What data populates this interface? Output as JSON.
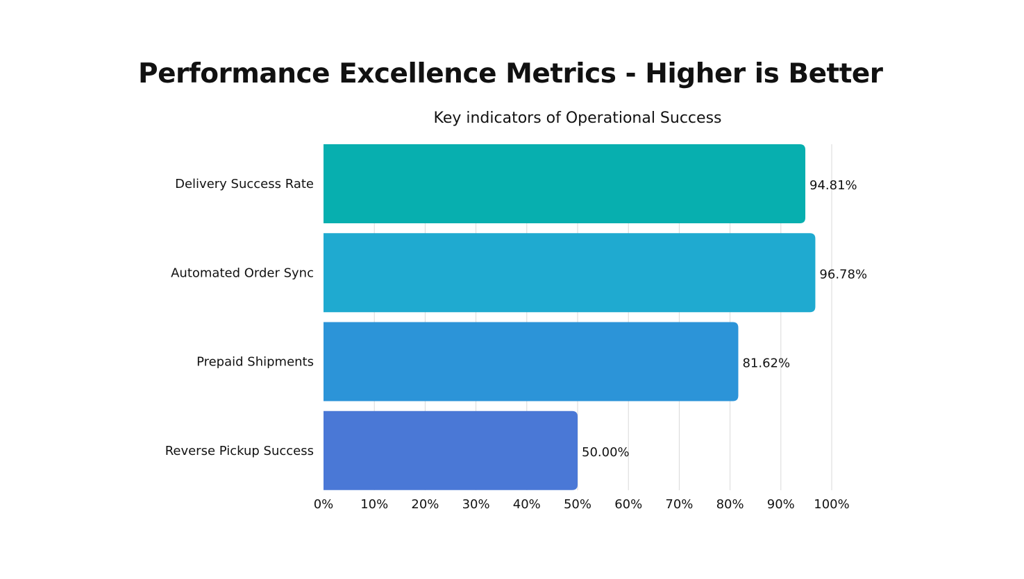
{
  "chart_data": {
    "type": "bar",
    "orientation": "horizontal",
    "title": "Performance Excellence Metrics - Higher is Better",
    "subtitle": "Key indicators of Operational Success",
    "categories": [
      "Delivery Success Rate",
      "Automated Order Sync",
      "Prepaid Shipments",
      "Reverse Pickup Success"
    ],
    "values": [
      94.81,
      96.78,
      81.62,
      50.0
    ],
    "data_labels": [
      "94.81%",
      "96.78%",
      "81.62%",
      "50.00%"
    ],
    "colors": [
      "#07AFAF",
      "#1FAAD0",
      "#2C94D8",
      "#4A78D6"
    ],
    "xlim": [
      0,
      100
    ],
    "x_ticks": [
      "0%",
      "10%",
      "20%",
      "30%",
      "40%",
      "50%",
      "60%",
      "70%",
      "80%",
      "90%",
      "100%"
    ],
    "grid": "vertical",
    "legend": "none",
    "xlabel": "",
    "ylabel": ""
  }
}
